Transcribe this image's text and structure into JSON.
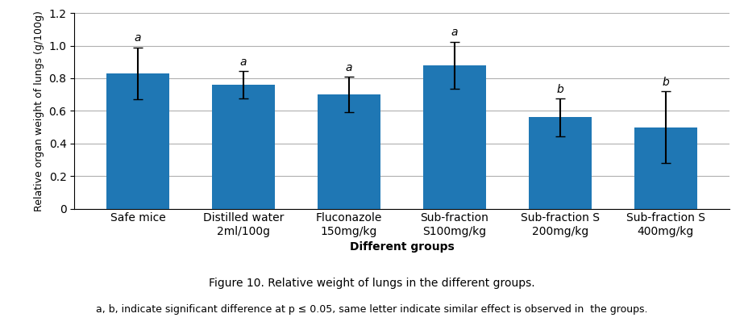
{
  "chart_data": {
    "type": "bar",
    "title": "Figure 10. Relative weight of lungs in the different groups.",
    "caption": "a, b, indicate significant difference at p ≤ 0.05, same letter indicate similar effect is observed in  the groups.",
    "xlabel": "Different groups",
    "ylabel": "Relative organ weight of lungs (g/100g)",
    "categories": [
      "Safe mice",
      "Distilled water\n2ml/100g",
      "Fluconazole\n150mg/kg",
      "Sub-fraction\nS100mg/kg",
      "Sub-fraction S\n200mg/kg",
      "Sub-fraction S\n400mg/kg"
    ],
    "values": [
      0.83,
      0.76,
      0.7,
      0.88,
      0.56,
      0.5
    ],
    "errors": [
      0.16,
      0.085,
      0.11,
      0.145,
      0.115,
      0.22
    ],
    "annotations": [
      {
        "category": "Safe mice",
        "text": "a"
      },
      {
        "category": "Distilled water\n2ml/100g",
        "text": "a"
      },
      {
        "category": "Fluconazole\n150mg/kg",
        "text": "a"
      },
      {
        "category": "Sub-fraction\nS100mg/kg",
        "text": "a"
      },
      {
        "category": "Sub-fraction S\n200mg/kg",
        "text": "b"
      },
      {
        "category": "Sub-fraction S\n400mg/kg",
        "text": "b"
      }
    ],
    "ylim": [
      0,
      1.2
    ],
    "yticks": [
      0,
      0.2,
      0.4,
      0.6,
      0.8,
      1.0,
      1.2
    ],
    "grid": true
  }
}
